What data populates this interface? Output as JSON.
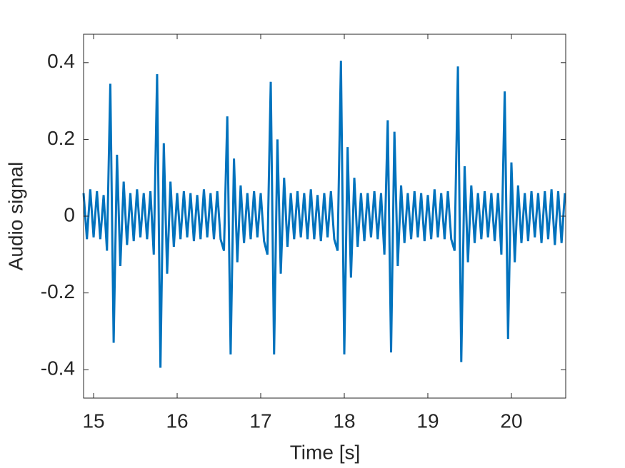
{
  "chart_data": {
    "type": "line",
    "xlabel": "Time [s]",
    "ylabel": "Audio signal",
    "color": "#0072bd",
    "xlim": [
      14.88,
      20.65
    ],
    "ylim": [
      -0.474,
      0.474
    ],
    "xticks": [
      15,
      16,
      17,
      18,
      19,
      20
    ],
    "yticks": [
      -0.4,
      -0.2,
      0,
      0.2,
      0.4
    ],
    "x": [
      14.88,
      14.92,
      14.96,
      15,
      15.04,
      15.08,
      15.12,
      15.16,
      15.2,
      15.24,
      15.28,
      15.32,
      15.36,
      15.4,
      15.44,
      15.48,
      15.52,
      15.56,
      15.6,
      15.64,
      15.68,
      15.72,
      15.76,
      15.8,
      15.84,
      15.88,
      15.92,
      15.96,
      16,
      16.04,
      16.08,
      16.12,
      16.16,
      16.2,
      16.24,
      16.28,
      16.32,
      16.36,
      16.4,
      16.44,
      16.48,
      16.52,
      16.56,
      16.6,
      16.64,
      16.68,
      16.72,
      16.76,
      16.8,
      16.84,
      16.88,
      16.92,
      16.96,
      17,
      17.04,
      17.08,
      17.12,
      17.16,
      17.2,
      17.24,
      17.28,
      17.32,
      17.36,
      17.4,
      17.44,
      17.48,
      17.52,
      17.56,
      17.6,
      17.64,
      17.68,
      17.72,
      17.76,
      17.8,
      17.84,
      17.88,
      17.92,
      17.96,
      18,
      18.04,
      18.08,
      18.12,
      18.16,
      18.2,
      18.24,
      18.28,
      18.32,
      18.36,
      18.4,
      18.44,
      18.48,
      18.52,
      18.56,
      18.6,
      18.64,
      18.68,
      18.72,
      18.76,
      18.8,
      18.84,
      18.88,
      18.92,
      18.96,
      19,
      19.04,
      19.08,
      19.12,
      19.16,
      19.2,
      19.24,
      19.28,
      19.32,
      19.36,
      19.4,
      19.44,
      19.48,
      19.52,
      19.56,
      19.6,
      19.64,
      19.68,
      19.72,
      19.76,
      19.8,
      19.84,
      19.88,
      19.92,
      19.96,
      20,
      20.04,
      20.08,
      20.12,
      20.16,
      20.2,
      20.24,
      20.28,
      20.32,
      20.36,
      20.4,
      20.44,
      20.48,
      20.52,
      20.56,
      20.6,
      20.64
    ],
    "values": [
      0.06,
      -0.06,
      0.07,
      -0.055,
      0.065,
      -0.06,
      0.055,
      -0.09,
      0.345,
      -0.33,
      0.16,
      -0.13,
      0.09,
      -0.075,
      0.06,
      -0.065,
      0.07,
      -0.055,
      0.06,
      -0.06,
      0.065,
      -0.1,
      0.37,
      -0.395,
      0.19,
      -0.15,
      0.09,
      -0.08,
      0.06,
      -0.06,
      0.065,
      -0.055,
      0.06,
      -0.065,
      0.055,
      -0.06,
      0.07,
      -0.055,
      0.06,
      -0.06,
      0.065,
      -0.06,
      -0.09,
      0.26,
      -0.36,
      0.15,
      -0.12,
      0.08,
      -0.07,
      0.06,
      -0.06,
      0.065,
      -0.055,
      0.06,
      -0.065,
      -0.1,
      0.35,
      -0.36,
      0.2,
      -0.15,
      0.1,
      -0.08,
      0.06,
      -0.06,
      0.065,
      -0.055,
      0.06,
      -0.06,
      0.07,
      -0.06,
      0.055,
      -0.065,
      0.06,
      -0.055,
      0.065,
      -0.06,
      -0.09,
      0.405,
      -0.36,
      0.18,
      -0.16,
      0.1,
      -0.08,
      0.06,
      -0.065,
      0.06,
      -0.055,
      0.065,
      -0.06,
      0.06,
      -0.1,
      0.25,
      -0.355,
      0.22,
      -0.13,
      0.08,
      -0.07,
      0.06,
      -0.06,
      0.065,
      -0.055,
      0.06,
      -0.065,
      0.055,
      -0.06,
      0.07,
      -0.055,
      0.06,
      -0.06,
      0.065,
      -0.06,
      -0.09,
      0.39,
      -0.38,
      0.13,
      -0.12,
      0.08,
      -0.07,
      0.06,
      -0.06,
      0.065,
      -0.055,
      0.06,
      -0.065,
      0.06,
      -0.1,
      0.325,
      -0.32,
      0.14,
      -0.12,
      0.08,
      -0.07,
      0.06,
      -0.065,
      0.065,
      -0.055,
      0.06,
      -0.07,
      0.065,
      -0.06,
      0.07,
      -0.075,
      0.065,
      -0.07,
      0.06
    ]
  }
}
